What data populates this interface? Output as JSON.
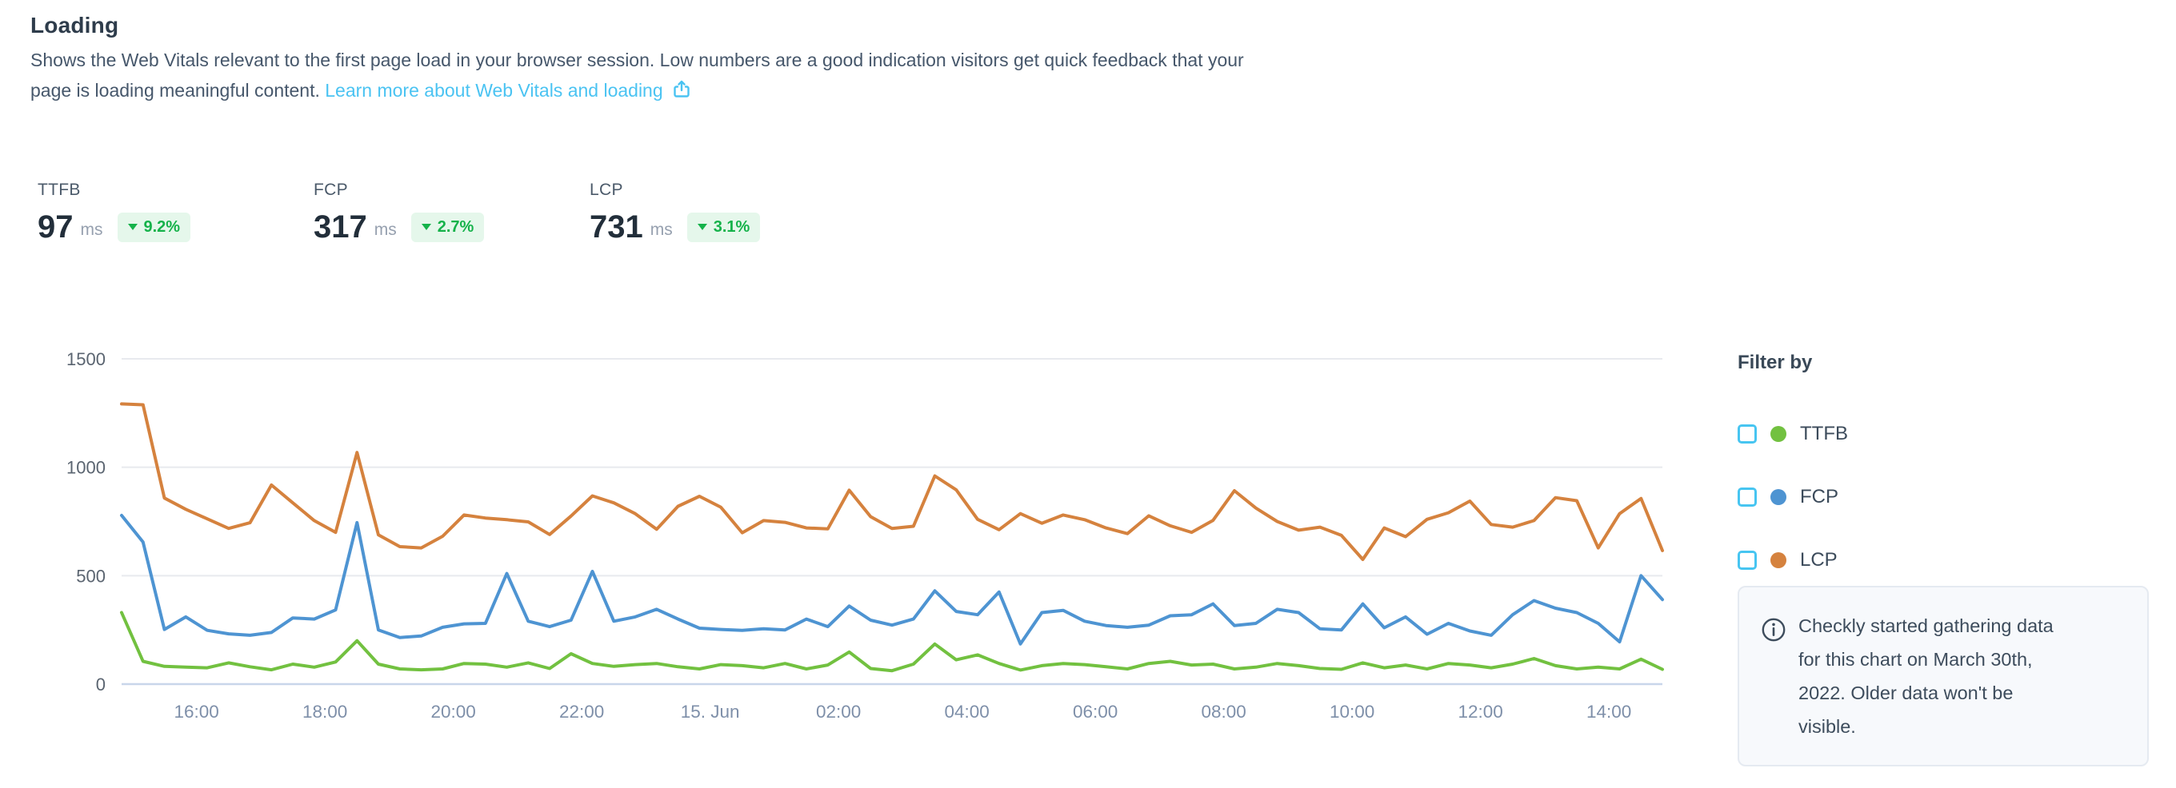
{
  "header": {
    "title": "Loading",
    "desc_line1": "Shows the Web Vitals relevant to the first page load in your browser session. Low numbers are a good indication visitors get quick feedback that your",
    "desc_line2": "page is loading meaningful content.",
    "link_label": "Learn more about Web Vitals and loading"
  },
  "metrics": [
    {
      "label": "TTFB",
      "value": "97",
      "unit": "ms",
      "delta": "9.2%",
      "trend": "down"
    },
    {
      "label": "FCP",
      "value": "317",
      "unit": "ms",
      "delta": "2.7%",
      "trend": "down"
    },
    {
      "label": "LCP",
      "value": "731",
      "unit": "ms",
      "delta": "3.1%",
      "trend": "down"
    }
  ],
  "filter_panel": {
    "title": "Filter by",
    "items": [
      {
        "label": "TTFB",
        "color": "#72c140",
        "checked": false
      },
      {
        "label": "FCP",
        "color": "#4e94d2",
        "checked": false
      },
      {
        "label": "LCP",
        "color": "#d5823e",
        "checked": false
      }
    ]
  },
  "info_box": {
    "lines": [
      "Checkly started gathering data",
      "for this chart on March 30th,",
      "2022. Older data won't be",
      "visible."
    ]
  },
  "colors": {
    "accent_link": "#4ac3f2",
    "badge_bg": "#e5f7eb",
    "badge_fg": "#15b24a",
    "grid": "#e8eaee",
    "zero_axis": "#c8d6ea",
    "y_label": "#5a6470",
    "x_label": "#7e8fa9",
    "checkbox": "#47c5f1"
  },
  "chart_data": {
    "type": "line",
    "title": "",
    "xlabel": "",
    "ylabel": "",
    "ylim": [
      0,
      1500
    ],
    "yticks": [
      0,
      500,
      1000,
      1500
    ],
    "grid": true,
    "legend_position": "right",
    "x_tick_labels": [
      "16:00",
      "18:00",
      "20:00",
      "22:00",
      "15. Jun",
      "02:00",
      "04:00",
      "06:00",
      "08:00",
      "10:00",
      "12:00",
      "14:00"
    ],
    "x_tick_indices": [
      3.5,
      9.5,
      15.5,
      21.5,
      27.5,
      33.5,
      39.5,
      45.5,
      51.5,
      57.5,
      63.5,
      69.5
    ],
    "x_note": "values sampled at 20-minute intervals across ~24 hours (Jun 14 ~14:50 to Jun 15 ~14:50)",
    "series": [
      {
        "name": "LCP",
        "color": "#d5823e",
        "values": [
          1292,
          1288,
          858,
          806,
          762,
          718,
          744,
          918,
          836,
          754,
          700,
          1068,
          688,
          634,
          628,
          682,
          780,
          766,
          758,
          748,
          690,
          775,
          868,
          836,
          786,
          714,
          820,
          866,
          816,
          698,
          754,
          746,
          720,
          716,
          894,
          772,
          718,
          728,
          960,
          896,
          760,
          712,
          786,
          742,
          780,
          758,
          720,
          694,
          776,
          730,
          700,
          755,
          892,
          812,
          750,
          710,
          724,
          686,
          575,
          720,
          680,
          760,
          790,
          844,
          736,
          724,
          754,
          860,
          846,
          628,
          786,
          856,
          616
        ]
      },
      {
        "name": "FCP",
        "color": "#4e94d2",
        "values": [
          778,
          655,
          252,
          310,
          248,
          232,
          225,
          238,
          305,
          300,
          342,
          745,
          250,
          215,
          222,
          262,
          278,
          280,
          510,
          290,
          265,
          295,
          520,
          290,
          310,
          345,
          300,
          258,
          252,
          248,
          255,
          250,
          300,
          265,
          360,
          295,
          272,
          300,
          430,
          335,
          320,
          425,
          185,
          330,
          340,
          290,
          270,
          262,
          272,
          315,
          320,
          370,
          270,
          280,
          345,
          330,
          255,
          250,
          370,
          260,
          310,
          230,
          280,
          245,
          225,
          320,
          385,
          350,
          330,
          280,
          195,
          500,
          390
        ]
      },
      {
        "name": "TTFB",
        "color": "#72c140",
        "values": [
          330,
          105,
          82,
          78,
          75,
          98,
          80,
          66,
          92,
          78,
          102,
          200,
          92,
          70,
          66,
          70,
          95,
          92,
          78,
          98,
          72,
          140,
          95,
          82,
          90,
          95,
          80,
          70,
          90,
          85,
          75,
          95,
          70,
          88,
          148,
          72,
          62,
          92,
          185,
          112,
          135,
          95,
          65,
          85,
          95,
          90,
          80,
          70,
          95,
          105,
          88,
          92,
          70,
          78,
          95,
          85,
          72,
          68,
          98,
          75,
          88,
          70,
          95,
          88,
          75,
          92,
          118,
          85,
          70,
          78,
          70,
          115,
          68
        ]
      }
    ]
  }
}
